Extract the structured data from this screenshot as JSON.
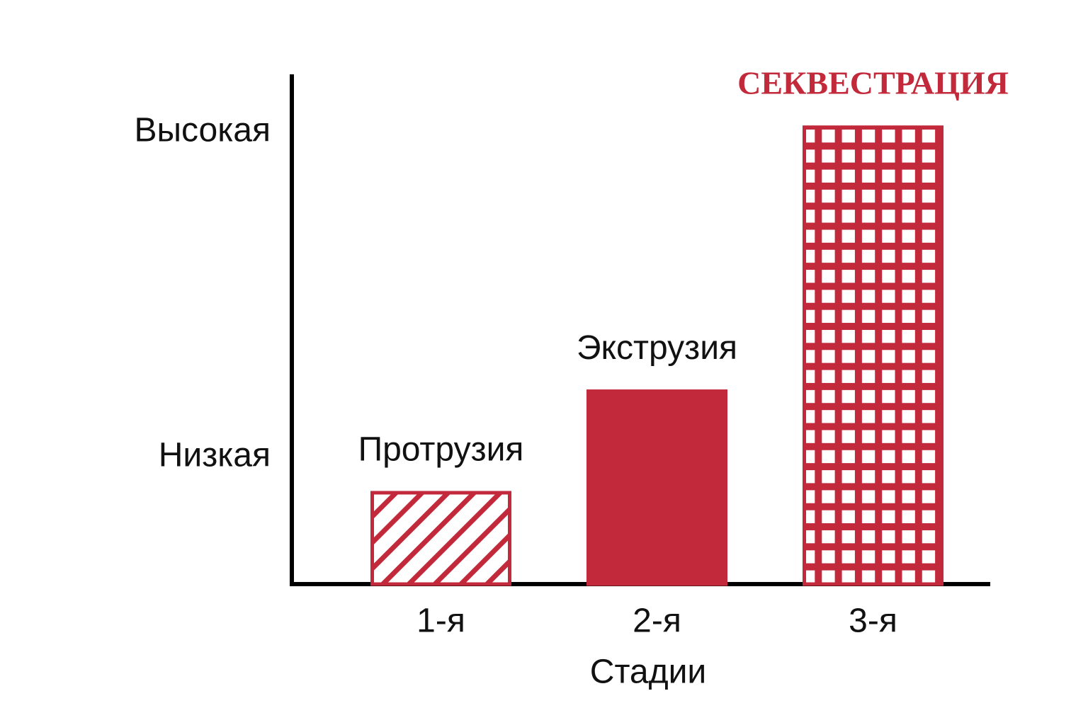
{
  "chart_data": {
    "type": "bar",
    "xlabel": "Стадии",
    "categories": [
      "1-я",
      "2-я",
      "3-я"
    ],
    "values": [
      18,
      38,
      90
    ],
    "annotations": [
      "Протрузия",
      "Экструзия",
      "СЕКВЕСТРАЦИЯ"
    ],
    "patterns": [
      "hatch",
      "solid",
      "grid"
    ],
    "color": "#c22a3c",
    "ylim": [
      0,
      100
    ],
    "yticks": [
      {
        "value": 25,
        "label": "Низкая"
      },
      {
        "value": 89,
        "label": "Высокая"
      }
    ],
    "grid": false
  }
}
